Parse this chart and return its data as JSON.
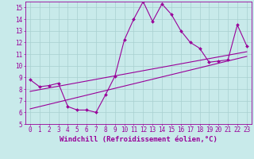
{
  "background_color": "#c8eaea",
  "grid_color": "#a8d0d0",
  "line_color": "#990099",
  "marker": "D",
  "markersize": 2.0,
  "linewidth": 0.8,
  "xlabel": "Windchill (Refroidissement éolien,°C)",
  "xlabel_fontsize": 6.5,
  "tick_fontsize": 5.5,
  "xlim": [
    -0.5,
    23.5
  ],
  "ylim": [
    5,
    15.5
  ],
  "yticks": [
    5,
    6,
    7,
    8,
    9,
    10,
    11,
    12,
    13,
    14,
    15
  ],
  "xticks": [
    0,
    1,
    2,
    3,
    4,
    5,
    6,
    7,
    8,
    9,
    10,
    11,
    12,
    13,
    14,
    15,
    16,
    17,
    18,
    19,
    20,
    21,
    22,
    23
  ],
  "line1_x": [
    0,
    1,
    2,
    3,
    4,
    5,
    6,
    7,
    8,
    9,
    10,
    11,
    12,
    13,
    14,
    15,
    16,
    17,
    18,
    19,
    20,
    21,
    22,
    23
  ],
  "line1_y": [
    8.8,
    8.2,
    8.3,
    8.5,
    6.5,
    6.2,
    6.2,
    6.0,
    7.5,
    9.1,
    12.2,
    14.0,
    15.5,
    13.8,
    15.3,
    14.4,
    13.0,
    12.0,
    11.5,
    10.3,
    10.4,
    10.5,
    13.5,
    11.7
  ],
  "line2_x": [
    0,
    23
  ],
  "line2_y": [
    6.3,
    10.8
  ],
  "line3_x": [
    0,
    23
  ],
  "line3_y": [
    7.8,
    11.2
  ]
}
